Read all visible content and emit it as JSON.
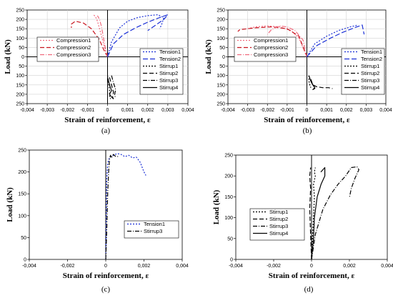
{
  "colors": {
    "blue": "#1a2fd6",
    "red": "#c8141e",
    "pink": "#f06b7e",
    "black": "#000000",
    "grid": "#d2d2d2"
  },
  "chart_data": [
    {
      "type": "line",
      "panel_label": "(a)",
      "xlabel": "Strain of reinforcement, ε",
      "ylabel": "Load (kN)",
      "xlim": [
        -0.004,
        0.004
      ],
      "xticks": [
        "-0,004",
        "-0,003",
        "-0,002",
        "-0,001",
        "0",
        "0,001",
        "0,002",
        "0,003",
        "0,004"
      ],
      "ylim": [
        -250,
        250
      ],
      "yticks": [
        "250",
        "200",
        "150",
        "100",
        "50",
        "0",
        "50",
        "100",
        "150",
        "200",
        "250"
      ],
      "grid": true,
      "series": [
        {
          "name": "Compression1",
          "group": "left",
          "color": "#f06b7e",
          "dash": "2,2",
          "x": [
            0,
            -0.0001,
            -0.0002,
            -0.0003,
            -0.0004,
            -0.0005,
            -0.0006,
            -0.0007
          ],
          "y": [
            0,
            30,
            70,
            110,
            150,
            190,
            215,
            225
          ]
        },
        {
          "name": "Compression2",
          "group": "left",
          "color": "#c8141e",
          "dash": "6,3",
          "x": [
            0,
            -0.0002,
            -0.0004,
            -0.0008,
            -0.0012,
            -0.0016,
            -0.0018,
            -0.0018
          ],
          "y": [
            0,
            40,
            90,
            150,
            180,
            190,
            175,
            155
          ]
        },
        {
          "name": "Compression3",
          "group": "left",
          "color": "#f06b7e",
          "dash": "6,2,1,2",
          "x": [
            0,
            -0.0001,
            -0.0002,
            -0.0003,
            -0.0004,
            -0.0005
          ],
          "y": [
            0,
            40,
            100,
            160,
            200,
            220
          ]
        },
        {
          "name": "Tension1",
          "group": "right",
          "color": "#1a2fd6",
          "dash": "2,2",
          "x": [
            0,
            0.0002,
            0.0006,
            0.001,
            0.0015,
            0.002,
            0.0025,
            0.0028,
            0.0027,
            0.0026
          ],
          "y": [
            0,
            80,
            155,
            190,
            210,
            220,
            225,
            210,
            175,
            150
          ]
        },
        {
          "name": "Tension2",
          "group": "right",
          "color": "#1a2fd6",
          "dash": "7,3",
          "x": [
            0,
            0.0003,
            0.0008,
            0.0014,
            0.002,
            0.0026,
            0.003,
            0.0028,
            0.0024,
            0.002
          ],
          "y": [
            0,
            70,
            120,
            155,
            185,
            210,
            225,
            200,
            170,
            140
          ]
        },
        {
          "name": "Stirrup1",
          "group": "right",
          "color": "#000000",
          "dash": "2,2",
          "x": [
            0,
            5e-05,
            0.0001,
            0.0001,
            0.00015
          ],
          "y": [
            -100,
            -140,
            -180,
            -210,
            -225
          ]
        },
        {
          "name": "Stirrup2",
          "group": "right",
          "color": "#000000",
          "dash": "6,3",
          "x": [
            0.0001,
            0.0002,
            0.0003,
            0.00025,
            0.0003
          ],
          "y": [
            -110,
            -150,
            -190,
            -215,
            -225
          ]
        },
        {
          "name": "Stirrup3",
          "group": "right",
          "color": "#000000",
          "dash": "6,2,1,2",
          "x": [
            0.0002,
            0.0003,
            0.0004,
            0.00035,
            0.0004
          ],
          "y": [
            -100,
            -140,
            -175,
            -205,
            -220
          ]
        },
        {
          "name": "Stirrup4",
          "group": "right",
          "color": "#000000",
          "dash": "",
          "x": [
            0,
            0.0001,
            0.0002,
            0.0001,
            0.0002,
            0.0003
          ],
          "y": [
            -110,
            -150,
            -180,
            -200,
            -215,
            -225
          ]
        }
      ]
    },
    {
      "type": "line",
      "panel_label": "(b)",
      "xlabel": "Strain of reinforcement, ε",
      "ylabel": "Load (kN)",
      "xlim": [
        -0.004,
        0.004
      ],
      "xticks": [
        "-0,004",
        "-0,003",
        "-0,002",
        "-0,001",
        "0",
        "0,001",
        "0,002",
        "0,003",
        "0,004"
      ],
      "ylim": [
        -250,
        250
      ],
      "yticks": [
        "250",
        "200",
        "150",
        "100",
        "50",
        "0",
        "50",
        "100",
        "150",
        "200",
        "250"
      ],
      "grid": true,
      "series": [
        {
          "name": "Compression1",
          "group": "left",
          "color": "#f06b7e",
          "dash": "2,2",
          "x": [
            0,
            -0.0004,
            -0.0008,
            -0.0014,
            -0.002,
            -0.0026,
            -0.003
          ],
          "y": [
            0,
            100,
            140,
            160,
            165,
            160,
            150
          ]
        },
        {
          "name": "Compression2",
          "group": "left",
          "color": "#c8141e",
          "dash": "6,3",
          "x": [
            0,
            -0.0004,
            -0.001,
            -0.0018,
            -0.0026,
            -0.0034,
            -0.0035
          ],
          "y": [
            0,
            110,
            150,
            160,
            155,
            145,
            135
          ]
        },
        {
          "name": "Compression3",
          "group": "left",
          "color": "#f06b7e",
          "dash": "6,2,1,2",
          "x": [
            0,
            -0.0002,
            -0.0006,
            -0.001,
            -0.0014,
            -0.0018,
            -0.002
          ],
          "y": [
            0,
            90,
            140,
            160,
            165,
            145,
            120
          ]
        },
        {
          "name": "Tension1",
          "group": "right",
          "color": "#1a2fd6",
          "dash": "2,2",
          "x": [
            0,
            0.0004,
            0.001,
            0.0016,
            0.0022,
            0.0026
          ],
          "y": [
            0,
            70,
            110,
            140,
            160,
            170
          ]
        },
        {
          "name": "Tension2",
          "group": "right",
          "color": "#1a2fd6",
          "dash": "7,3",
          "x": [
            0,
            0.0005,
            0.0012,
            0.0018,
            0.0024,
            0.0028,
            0.0029
          ],
          "y": [
            0,
            60,
            100,
            130,
            155,
            170,
            120
          ]
        },
        {
          "name": "Stirrup1",
          "group": "right",
          "color": "#000000",
          "dash": "2,2",
          "x": [
            0.0001,
            0.0001,
            0.00015,
            0.0002
          ],
          "y": [
            -100,
            -130,
            -150,
            -165
          ]
        },
        {
          "name": "Stirrup2",
          "group": "right",
          "color": "#000000",
          "dash": "6,3",
          "x": [
            0.0002,
            0.0003,
            0.0005,
            0.0008,
            0.0011,
            0.0013
          ],
          "y": [
            -120,
            -150,
            -160,
            -165,
            -165,
            -170
          ]
        },
        {
          "name": "Stirrup3",
          "group": "right",
          "color": "#000000",
          "dash": "6,2,1,2",
          "x": [
            0.0002,
            0.0003,
            0.0004,
            0.0004
          ],
          "y": [
            -130,
            -150,
            -160,
            -170
          ]
        },
        {
          "name": "Stirrup4",
          "group": "right",
          "color": "#000000",
          "dash": "",
          "x": [
            0.0001,
            0.0002,
            0.0003,
            0.0004,
            0.0003,
            0.0004
          ],
          "y": [
            -100,
            -130,
            -150,
            -165,
            -175,
            -170
          ]
        }
      ]
    },
    {
      "type": "line",
      "panel_label": "(c)",
      "xlabel": "Strain of reinforcement, ε",
      "ylabel": "Load (kN)",
      "xlim": [
        -0.004,
        0.004
      ],
      "xticks": [
        "-0,004",
        "-0,002",
        "0",
        "0,002",
        "0,004"
      ],
      "ylim": [
        0,
        250
      ],
      "yticks": [
        "0",
        "50",
        "100",
        "150",
        "200",
        "250"
      ],
      "grid": false,
      "series": [
        {
          "name": "Tension1",
          "color": "#1a2fd6",
          "dash": "2,2",
          "x": [
            0,
            3e-05,
            5e-05,
            0.0001,
            0.0002,
            0.0004,
            0.0006,
            0.0008,
            0.001,
            0.0012,
            0.0014,
            0.0016,
            0.0018,
            0.002,
            0.0021
          ],
          "y": [
            0,
            100,
            180,
            220,
            233,
            238,
            242,
            240,
            235,
            238,
            232,
            234,
            222,
            200,
            192
          ]
        },
        {
          "name": "Stirrup3",
          "color": "#000000",
          "dash": "6,2,1,2",
          "x": [
            0,
            5e-05,
            0.0001,
            0.00015,
            0.0002,
            0.00025,
            0.0003,
            0.0004,
            0.0005,
            0.0007
          ],
          "y": [
            0,
            60,
            150,
            200,
            230,
            238,
            232,
            240,
            236,
            235
          ]
        }
      ]
    },
    {
      "type": "line",
      "panel_label": "(d)",
      "xlabel": "Strain of reinforcement, ε",
      "ylabel": "Load (kN)",
      "xlim": [
        -0.004,
        0.004
      ],
      "xticks": [
        "-0,004",
        "-0,002",
        "0",
        "0,002",
        "0,004"
      ],
      "ylim": [
        0,
        250
      ],
      "yticks": [
        "0",
        "50",
        "100",
        "150",
        "200",
        "250"
      ],
      "grid": false,
      "series": [
        {
          "name": "Stirrup1",
          "color": "#000000",
          "dash": "2,2",
          "x": [
            0,
            5e-05,
            0.0001,
            0.00015,
            0.0001,
            0.0002,
            0.00015,
            0.0002
          ],
          "y": [
            0,
            50,
            100,
            150,
            180,
            200,
            210,
            220
          ]
        },
        {
          "name": "Stirrup2",
          "color": "#000000",
          "dash": "6,3",
          "x": [
            0,
            -5e-05,
            -0.0001,
            -5e-05,
            -0.0001,
            -5e-05
          ],
          "y": [
            0,
            60,
            120,
            170,
            200,
            220
          ]
        },
        {
          "name": "Stirrup3",
          "color": "#000000",
          "dash": "6,2,1,2",
          "x": [
            0,
            0.0002,
            0.0006,
            0.001,
            0.0014,
            0.0018,
            0.0021,
            0.0024,
            0.0025,
            0.0023,
            0.0021,
            0.002
          ],
          "y": [
            0,
            60,
            120,
            155,
            180,
            200,
            220,
            222,
            215,
            195,
            170,
            148
          ]
        },
        {
          "name": "Stirrup4",
          "color": "#000000",
          "dash": "",
          "x": [
            0,
            0.0001,
            0.00015,
            0.0003,
            0.0005,
            0.0007,
            0.0007,
            0.0005,
            0.0007
          ],
          "y": [
            0,
            50,
            100,
            150,
            180,
            200,
            220,
            210,
            220
          ]
        }
      ]
    }
  ]
}
